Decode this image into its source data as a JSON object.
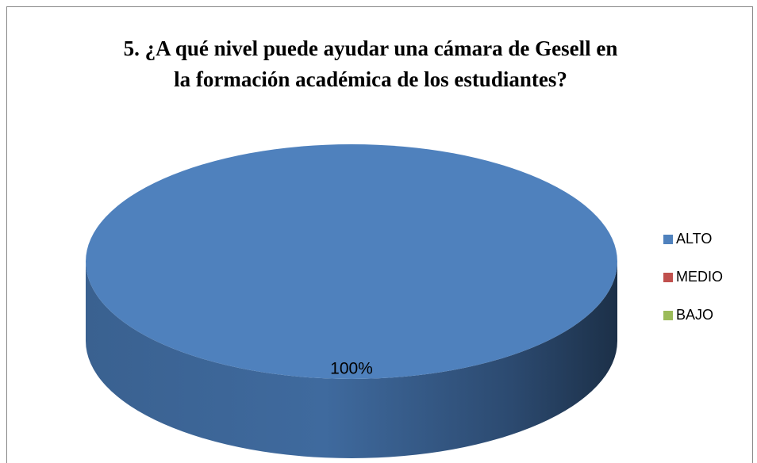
{
  "chart_data": {
    "type": "pie",
    "title": [
      "5. ¿A qué nivel  puede ayudar una cámara de Gesell en",
      "la formación académica de los estudiantes?"
    ],
    "categories": [
      "ALTO",
      "MEDIO",
      "BAJO"
    ],
    "values": [
      100,
      0,
      0
    ],
    "value_labels": [
      "100%",
      null,
      null
    ],
    "colors": [
      "#4f81bd",
      "#c0504d",
      "#9bbb59"
    ],
    "legend": "right"
  }
}
